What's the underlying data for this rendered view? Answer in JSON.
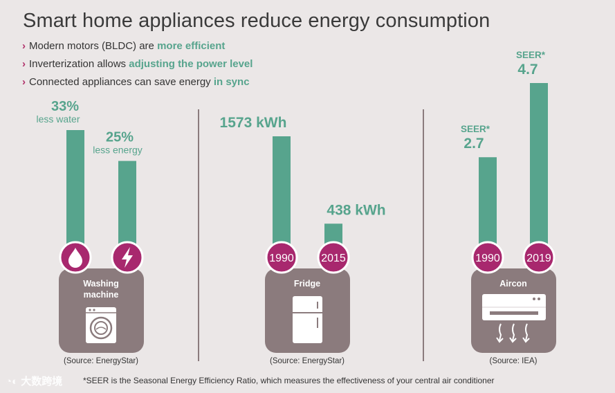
{
  "title": "Smart home appliances reduce energy consumption",
  "bullets": [
    {
      "text": "Modern motors (BLDC) are ",
      "highlight": "more efficient"
    },
    {
      "text": "Inverterization allows ",
      "highlight": "adjusting the power level"
    },
    {
      "text": "Connected appliances can save energy ",
      "highlight": "in sync"
    }
  ],
  "colors": {
    "bar": "#57a48d",
    "accent_text": "#57a48d",
    "badge": "#a8286e",
    "appliance_box": "#8b7b7d",
    "background": "#ebe7e7"
  },
  "chart_data": [
    {
      "type": "bar",
      "panel": "Washing machine",
      "appliance_label": [
        "Washing",
        "machine"
      ],
      "icon": "washing-machine-icon",
      "categories": [
        "water",
        "energy"
      ],
      "category_icons": [
        "water-drop-icon",
        "lightning-icon"
      ],
      "values": [
        33,
        25
      ],
      "value_labels": [
        "33%",
        "25%"
      ],
      "sub_labels": [
        "less water",
        "less energy"
      ],
      "source": "(Source: EnergyStar)"
    },
    {
      "type": "bar",
      "panel": "Fridge",
      "appliance_label": [
        "Fridge"
      ],
      "icon": "fridge-icon",
      "categories": [
        "1990",
        "2015"
      ],
      "values": [
        1573,
        438
      ],
      "value_labels": [
        "1573 kWh",
        "438 kWh"
      ],
      "unit": "kWh",
      "source": "(Source: EnergyStar)"
    },
    {
      "type": "bar",
      "panel": "Aircon",
      "appliance_label": [
        "Aircon"
      ],
      "icon": "air-conditioner-icon",
      "categories": [
        "1990",
        "2019"
      ],
      "values": [
        2.7,
        4.7
      ],
      "value_labels": [
        "2.7",
        "4.7"
      ],
      "value_prefix": "SEER*",
      "source": "(Source: IEA)"
    }
  ],
  "footnote": "*SEER is the Seasonal Energy Efficiency Ratio, which measures the effectiveness of your central air conditioner",
  "watermark": "大数跨境"
}
